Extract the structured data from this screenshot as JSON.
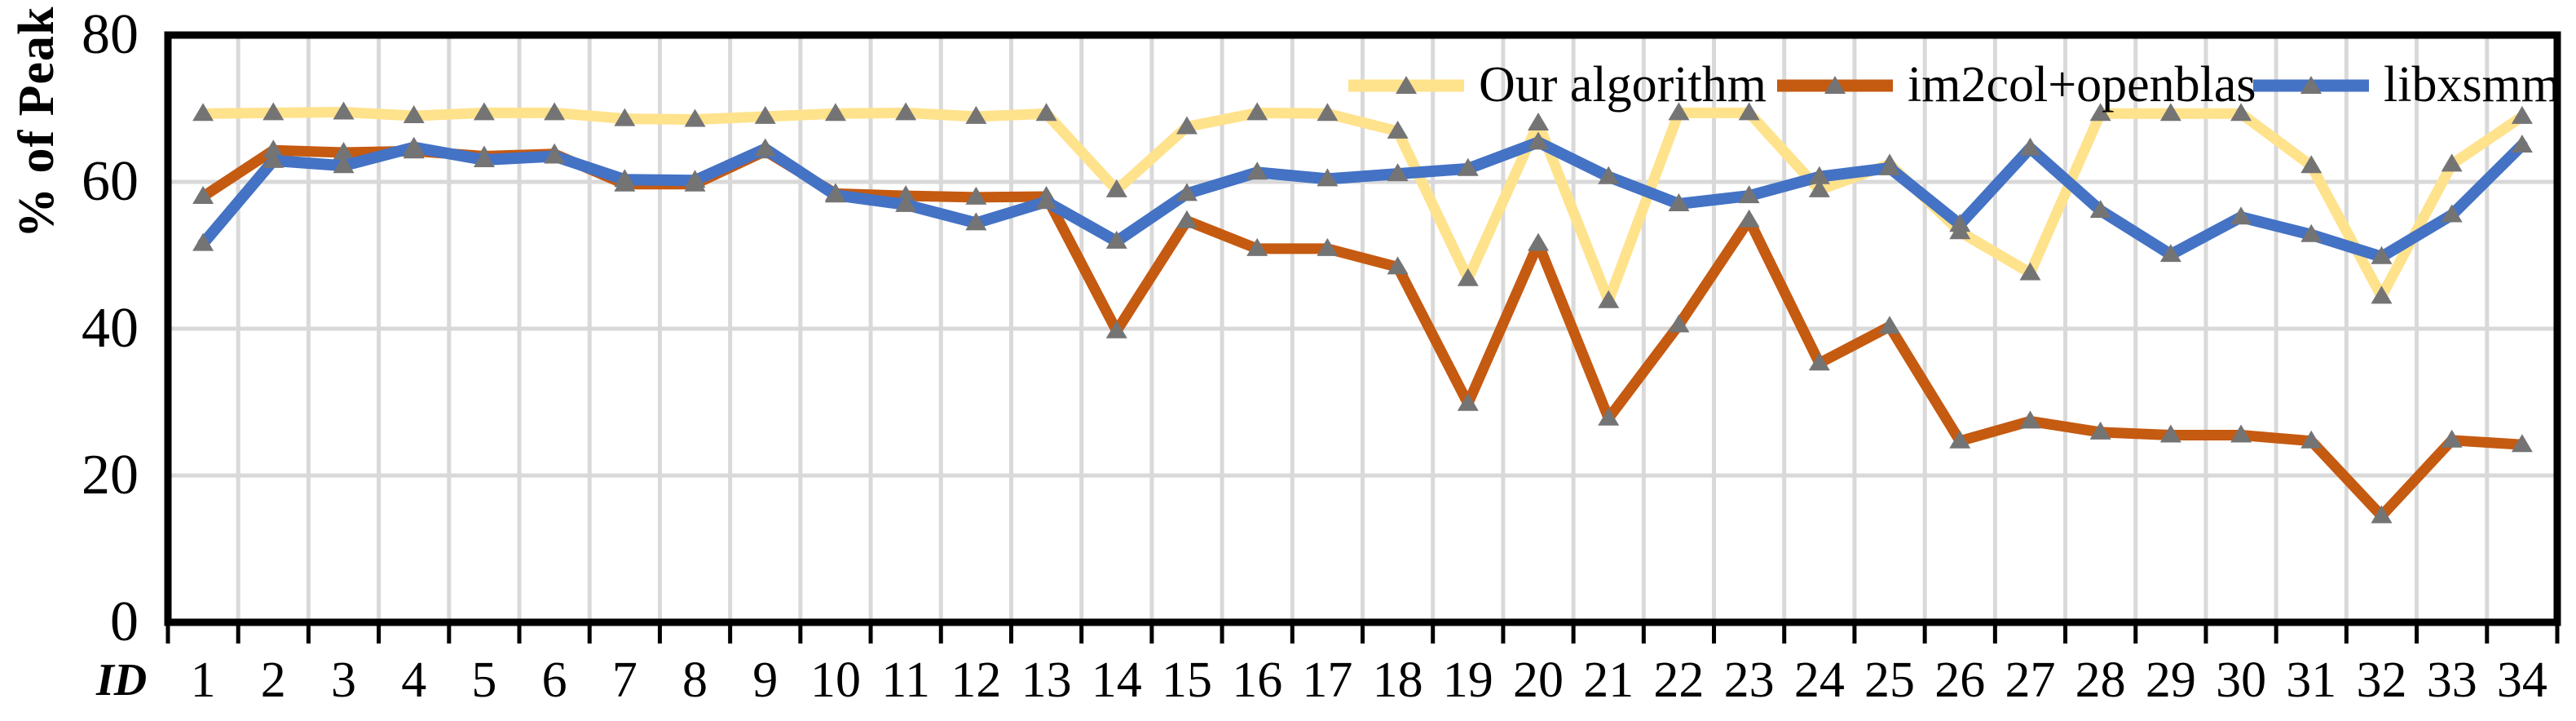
{
  "chart_data": {
    "type": "line",
    "title": "",
    "ylabel": "% of Peak",
    "x_axis_label": "ID",
    "ylim": [
      0,
      80
    ],
    "yticks": [
      0,
      20,
      40,
      60,
      80
    ],
    "grid": true,
    "legend_position": "top-right-inside",
    "categories": [
      1,
      2,
      3,
      4,
      5,
      6,
      7,
      8,
      9,
      10,
      11,
      12,
      13,
      14,
      15,
      16,
      17,
      18,
      19,
      20,
      21,
      22,
      23,
      24,
      25,
      26,
      27,
      28,
      29,
      30,
      31,
      32,
      33,
      34
    ],
    "series": [
      {
        "name": "Our algorithm",
        "color": "#FFE28C",
        "values": [
          69.3,
          69.4,
          69.5,
          69.0,
          69.4,
          69.4,
          68.6,
          68.5,
          68.9,
          69.3,
          69.4,
          68.9,
          69.3,
          58.9,
          67.5,
          69.4,
          69.3,
          66.9,
          46.8,
          68.0,
          43.8,
          69.4,
          69.4,
          58.9,
          62.4,
          53.2,
          47.6,
          69.3,
          69.3,
          69.3,
          62.2,
          44.4,
          62.4,
          68.9
        ]
      },
      {
        "name": "im2col+openblas",
        "color": "#C55A11",
        "values": [
          58.0,
          64.3,
          64.0,
          64.2,
          63.5,
          63.8,
          59.7,
          59.7,
          64.2,
          58.4,
          58.1,
          57.9,
          58.0,
          39.7,
          54.7,
          50.9,
          50.9,
          48.4,
          29.8,
          51.6,
          27.8,
          40.5,
          54.8,
          35.3,
          40.3,
          24.7,
          27.4,
          25.9,
          25.5,
          25.5,
          24.7,
          14.5,
          24.8,
          24.2
        ]
      },
      {
        "name": "libxsmm",
        "color": "#4472C4",
        "values": [
          51.6,
          62.9,
          62.2,
          64.7,
          63.0,
          63.5,
          60.3,
          60.2,
          64.5,
          58.2,
          56.9,
          54.4,
          57.3,
          51.9,
          58.4,
          61.3,
          60.4,
          61.1,
          61.8,
          65.4,
          60.7,
          57.0,
          58.1,
          60.7,
          61.9,
          54.2,
          64.6,
          56.1,
          50.1,
          55.2,
          52.8,
          49.8,
          55.5,
          65.0
        ]
      }
    ],
    "colors": {
      "gridline": "#D9D9D9",
      "frame": "#000000",
      "marker": "#747474",
      "tick": "#000000",
      "background": "#FFFFFF"
    }
  }
}
